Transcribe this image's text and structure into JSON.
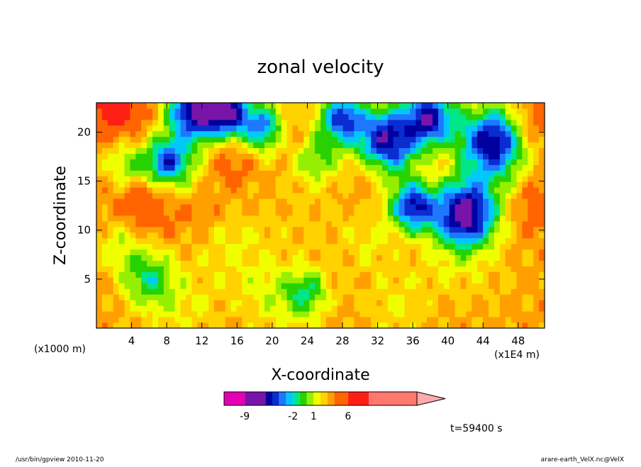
{
  "chart_data": {
    "type": "heatmap",
    "title": "zonal velocity",
    "xlabel": "X-coordinate",
    "ylabel": "Z-coordinate",
    "x_unit": "(x1000 m)",
    "x_unit_right": "(x1E4 m)",
    "x_ticks": [
      "4",
      "8",
      "12",
      "16",
      "20",
      "24",
      "28",
      "32",
      "36",
      "40",
      "44",
      "48"
    ],
    "y_ticks": [
      "5",
      "10",
      "15",
      "20"
    ],
    "xlim": [
      0,
      51
    ],
    "ylim": [
      0,
      23
    ],
    "colorbar": {
      "labels": [
        "-9",
        "-2",
        "1",
        "6"
      ],
      "label_at": [
        -9,
        -2,
        1,
        6
      ],
      "levels": [
        -12,
        -9,
        -6,
        -5,
        -4,
        -3,
        -2,
        -1,
        0,
        1,
        2,
        3,
        4,
        6,
        9,
        16
      ],
      "colors": [
        "#e600b4",
        "#7814a8",
        "#0000a0",
        "#0a2dd2",
        "#1e78ff",
        "#00c8ff",
        "#00e688",
        "#28d200",
        "#96ee00",
        "#f0ff00",
        "#ffd200",
        "#ffa000",
        "#ff6400",
        "#ff1e14",
        "#ff786e"
      ],
      "extend_color": "#ffaaaa"
    },
    "field": {
      "background": 3.5,
      "blobs": [
        {
          "x": 2,
          "z": 22.5,
          "r": 2.5,
          "v": 8
        },
        {
          "x": 6,
          "z": 21.5,
          "r": 3,
          "v": 4
        },
        {
          "x": 11,
          "z": 22,
          "r": 3,
          "v": -6
        },
        {
          "x": 15,
          "z": 22,
          "r": 2.5,
          "v": -5
        },
        {
          "x": 19,
          "z": 20.5,
          "r": 2.5,
          "v": -3
        },
        {
          "x": 22,
          "z": 19.5,
          "r": 2,
          "v": 5
        },
        {
          "x": 8,
          "z": 17,
          "r": 2.5,
          "v": -4
        },
        {
          "x": 3.5,
          "z": 16.5,
          "r": 2.5,
          "v": 0
        },
        {
          "x": 15,
          "z": 17,
          "r": 2.5,
          "v": 5
        },
        {
          "x": 11,
          "z": 15.5,
          "r": 3,
          "v": 2
        },
        {
          "x": 5,
          "z": 12.5,
          "r": 3.5,
          "v": 6
        },
        {
          "x": 12,
          "z": 12.5,
          "r": 3,
          "v": 4.5
        },
        {
          "x": 25,
          "z": 17.5,
          "r": 3,
          "v": 0
        },
        {
          "x": 28,
          "z": 21.5,
          "r": 2.5,
          "v": -4
        },
        {
          "x": 33,
          "z": 19,
          "r": 3.5,
          "v": -6
        },
        {
          "x": 38,
          "z": 21.5,
          "r": 3,
          "v": -5
        },
        {
          "x": 31,
          "z": 16.5,
          "r": 3,
          "v": 5
        },
        {
          "x": 38,
          "z": 15.5,
          "r": 3,
          "v": 4
        },
        {
          "x": 45,
          "z": 19,
          "r": 3.5,
          "v": -6
        },
        {
          "x": 50,
          "z": 21,
          "r": 2.5,
          "v": 5
        },
        {
          "x": 36,
          "z": 12.5,
          "r": 2.5,
          "v": -5
        },
        {
          "x": 42,
          "z": 11.8,
          "r": 3.5,
          "v": -7
        },
        {
          "x": 50,
          "z": 12.5,
          "r": 2.5,
          "v": 5
        },
        {
          "x": 47,
          "z": 15.5,
          "r": 2.5,
          "v": 3
        },
        {
          "x": 3,
          "z": 9,
          "r": 3,
          "v": 1
        },
        {
          "x": 21,
          "z": 11,
          "r": 4,
          "v": 3
        },
        {
          "x": 26,
          "z": 10.5,
          "r": 4,
          "v": 3
        },
        {
          "x": 31,
          "z": 9,
          "r": 3,
          "v": 2
        },
        {
          "x": 15,
          "z": 8.5,
          "r": 4,
          "v": 2
        },
        {
          "x": 6,
          "z": 5,
          "r": 3,
          "v": -1
        },
        {
          "x": 20,
          "z": 3.5,
          "r": 4,
          "v": 1.5
        },
        {
          "x": 24,
          "z": 3.5,
          "r": 2.5,
          "v": -0.5
        },
        {
          "x": 34,
          "z": 2.5,
          "r": 4,
          "v": 2
        },
        {
          "x": 10,
          "z": 2,
          "r": 4,
          "v": 2
        },
        {
          "x": 45,
          "z": 5,
          "r": 5,
          "v": 3
        },
        {
          "x": 40,
          "z": 7,
          "r": 4,
          "v": 2.5
        }
      ]
    }
  },
  "annotation": {
    "time": "t=59400 s"
  },
  "footer": {
    "left": "/usr/bin/gpview   2010-11-20",
    "right": "arare-earth_VelX.nc@VelX"
  }
}
